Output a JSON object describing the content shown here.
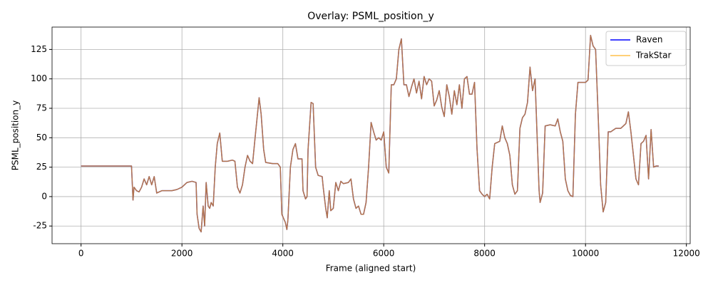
{
  "chart_data": {
    "type": "line",
    "title": "Overlay: PSML_position_y",
    "xlabel": "Frame (aligned start)",
    "ylabel": "PSML_position_y",
    "x": [
      0,
      1000,
      1030,
      1050,
      1100,
      1150,
      1200,
      1250,
      1300,
      1350,
      1400,
      1450,
      1500,
      1600,
      1700,
      1800,
      1900,
      2000,
      2100,
      2200,
      2280,
      2300,
      2340,
      2380,
      2420,
      2450,
      2480,
      2520,
      2550,
      2580,
      2620,
      2660,
      2700,
      2750,
      2800,
      2900,
      3000,
      3050,
      3100,
      3150,
      3200,
      3250,
      3300,
      3350,
      3400,
      3450,
      3530,
      3570,
      3620,
      3660,
      3800,
      3900,
      3950,
      3980,
      4050,
      4080,
      4100,
      4150,
      4200,
      4250,
      4300,
      4380,
      4400,
      4450,
      4480,
      4500,
      4560,
      4600,
      4650,
      4700,
      4780,
      4800,
      4850,
      4880,
      4920,
      4950,
      5000,
      5050,
      5100,
      5150,
      5200,
      5300,
      5350,
      5400,
      5450,
      5500,
      5550,
      5600,
      5650,
      5700,
      5750,
      5800,
      5850,
      5900,
      5950,
      6000,
      6050,
      6100,
      6150,
      6200,
      6250,
      6300,
      6350,
      6400,
      6450,
      6500,
      6550,
      6600,
      6650,
      6700,
      6750,
      6800,
      6850,
      6900,
      6950,
      7000,
      7050,
      7100,
      7150,
      7200,
      7250,
      7300,
      7350,
      7400,
      7450,
      7500,
      7550,
      7600,
      7650,
      7700,
      7750,
      7800,
      7850,
      7900,
      7950,
      8000,
      8050,
      8100,
      8150,
      8200,
      8300,
      8350,
      8400,
      8450,
      8500,
      8550,
      8600,
      8650,
      8700,
      8750,
      8800,
      8850,
      8900,
      8950,
      9000,
      9050,
      9080,
      9100,
      9150,
      9200,
      9300,
      9400,
      9450,
      9500,
      9550,
      9600,
      9650,
      9700,
      9750,
      9800,
      9850,
      9900,
      10000,
      10050,
      10100,
      10150,
      10200,
      10250,
      10300,
      10350,
      10400,
      10450,
      10500,
      10600,
      10700,
      10750,
      10800,
      10850,
      10900,
      10950,
      11000,
      11050,
      11100,
      11150,
      11200,
      11250,
      11300,
      11350,
      11400,
      11450
    ],
    "series": [
      {
        "name": "Raven",
        "color": "#0000ff",
        "opacity": 1,
        "values": [
          26,
          26,
          -3,
          8,
          5,
          4,
          8,
          15,
          10,
          17,
          10,
          17,
          3,
          5,
          5,
          5,
          6,
          8,
          12,
          13,
          12,
          -15,
          -27,
          -30,
          -8,
          -25,
          12,
          -8,
          -10,
          -5,
          -8,
          25,
          45,
          54,
          30,
          30,
          31,
          30,
          8,
          3,
          10,
          25,
          35,
          30,
          28,
          50,
          84,
          70,
          40,
          29,
          28,
          28,
          25,
          -15,
          -22,
          -28,
          -20,
          25,
          40,
          45,
          32,
          32,
          5,
          -2,
          0,
          40,
          80,
          79,
          25,
          18,
          17,
          8,
          -10,
          -18,
          5,
          -12,
          -10,
          12,
          5,
          13,
          11,
          12,
          15,
          -2,
          -10,
          -8,
          -15,
          -15,
          -5,
          25,
          63,
          55,
          48,
          50,
          48,
          55,
          25,
          20,
          95,
          95,
          100,
          125,
          134,
          95,
          95,
          85,
          93,
          100,
          88,
          98,
          83,
          102,
          95,
          100,
          98,
          77,
          82,
          90,
          76,
          68,
          95,
          85,
          70,
          90,
          78,
          95,
          75,
          100,
          102,
          87,
          87,
          97,
          40,
          5,
          2,
          0,
          2,
          -2,
          25,
          45,
          47,
          60,
          50,
          45,
          35,
          10,
          2,
          5,
          58,
          67,
          70,
          80,
          110,
          90,
          100,
          40,
          5,
          -5,
          3,
          60,
          61,
          60,
          66,
          55,
          47,
          15,
          5,
          1,
          0,
          70,
          97,
          97,
          97,
          99,
          137,
          128,
          125,
          70,
          10,
          -13,
          -5,
          55,
          55,
          58,
          58,
          60,
          62,
          72,
          55,
          35,
          15,
          10,
          45,
          47,
          52,
          15,
          57,
          25,
          26,
          26
        ]
      },
      {
        "name": "TrakStar",
        "color": "#ffa500",
        "opacity": 0.7,
        "values": [
          26,
          26,
          -3,
          8,
          5,
          4,
          8,
          15,
          10,
          17,
          10,
          17,
          3,
          5,
          5,
          5,
          6,
          8,
          12,
          13,
          12,
          -15,
          -27,
          -30,
          -8,
          -25,
          12,
          -8,
          -10,
          -5,
          -8,
          25,
          45,
          54,
          30,
          30,
          31,
          30,
          8,
          3,
          10,
          25,
          35,
          30,
          28,
          50,
          84,
          70,
          40,
          29,
          28,
          28,
          25,
          -15,
          -22,
          -28,
          -20,
          25,
          40,
          45,
          32,
          32,
          5,
          -2,
          0,
          40,
          80,
          79,
          25,
          18,
          17,
          8,
          -10,
          -18,
          5,
          -12,
          -10,
          12,
          5,
          13,
          11,
          12,
          15,
          -2,
          -10,
          -8,
          -15,
          -15,
          -5,
          25,
          63,
          55,
          48,
          50,
          48,
          55,
          25,
          20,
          95,
          95,
          100,
          125,
          134,
          95,
          95,
          85,
          93,
          100,
          88,
          98,
          83,
          102,
          95,
          100,
          98,
          77,
          82,
          90,
          76,
          68,
          95,
          85,
          70,
          90,
          78,
          95,
          75,
          100,
          102,
          87,
          87,
          97,
          40,
          5,
          2,
          0,
          2,
          -2,
          25,
          45,
          47,
          60,
          50,
          45,
          35,
          10,
          2,
          5,
          58,
          67,
          70,
          80,
          110,
          90,
          100,
          40,
          5,
          -5,
          3,
          60,
          61,
          60,
          66,
          55,
          47,
          15,
          5,
          1,
          0,
          70,
          97,
          97,
          97,
          99,
          137,
          128,
          125,
          70,
          10,
          -13,
          -5,
          55,
          55,
          58,
          58,
          60,
          62,
          72,
          55,
          35,
          15,
          10,
          45,
          47,
          52,
          15,
          57,
          25,
          26,
          26
        ]
      }
    ],
    "xlim": [
      -575,
      12075
    ],
    "xticks": [
      0,
      2000,
      4000,
      6000,
      8000,
      10000,
      12000
    ],
    "ylim": [
      -40,
      144
    ],
    "yticks": [
      -25,
      0,
      25,
      50,
      75,
      100,
      125
    ],
    "grid": true,
    "legend": "upper right"
  }
}
